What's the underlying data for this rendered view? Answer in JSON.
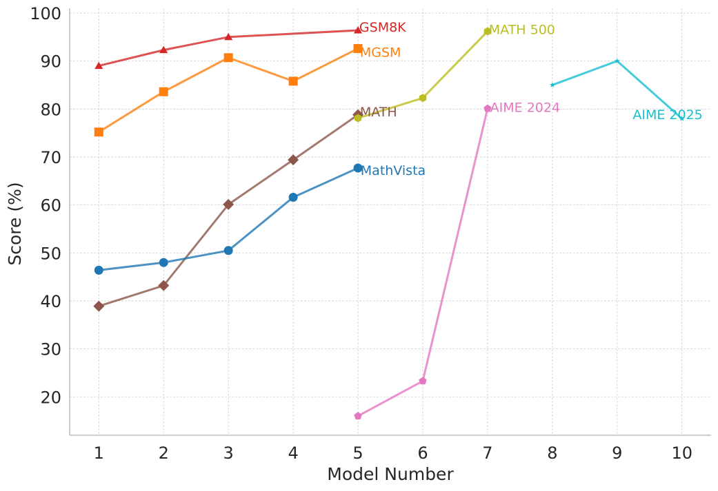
{
  "chart_data": {
    "type": "line",
    "title": "",
    "xlabel": "Model Number",
    "ylabel": "Score (%)",
    "xlim": [
      0.55,
      10.45
    ],
    "ylim": [
      12,
      101
    ],
    "xticks": [
      1,
      2,
      3,
      4,
      5,
      6,
      7,
      8,
      9,
      10
    ],
    "yticks": [
      20,
      30,
      40,
      50,
      60,
      70,
      80,
      90,
      100
    ],
    "grid": true,
    "series": [
      {
        "name": "GSM8K",
        "color": "#d62728",
        "marker": "triangle",
        "x": [
          1,
          2,
          3,
          5
        ],
        "y": [
          89.0,
          92.3,
          95.0,
          96.4
        ],
        "label_at": {
          "x": 5.02,
          "y": 97.1,
          "anchor": "start"
        }
      },
      {
        "name": "MGSM",
        "color": "#ff7f0e",
        "marker": "square",
        "x": [
          1,
          2,
          3,
          4,
          5
        ],
        "y": [
          75.2,
          83.6,
          90.7,
          85.8,
          92.6
        ],
        "label_at": {
          "x": 5.03,
          "y": 91.9,
          "anchor": "start"
        }
      },
      {
        "name": "MATH",
        "color": "#8c564b",
        "marker": "diamond",
        "x": [
          1,
          2,
          3,
          4,
          5
        ],
        "y": [
          38.9,
          43.2,
          60.1,
          69.4,
          78.8
        ],
        "label_at": {
          "x": 5.03,
          "y": 79.5,
          "anchor": "start"
        }
      },
      {
        "name": "MathVista",
        "color": "#1f77b4",
        "marker": "circle",
        "x": [
          1,
          2,
          3,
          4,
          5
        ],
        "y": [
          46.4,
          48.0,
          50.5,
          61.6,
          67.7
        ],
        "label_at": {
          "x": 5.04,
          "y": 67.3,
          "anchor": "start"
        }
      },
      {
        "name": "MATH 500",
        "color": "#bcbd22",
        "marker": "hexagon",
        "x": [
          5,
          6,
          7
        ],
        "y": [
          78.1,
          82.3,
          96.2
        ],
        "label_at": {
          "x": 7.02,
          "y": 96.6,
          "anchor": "start"
        }
      },
      {
        "name": "AIME 2024",
        "color": "#e377c2",
        "marker": "pentagon",
        "x": [
          5,
          6,
          7
        ],
        "y": [
          16.0,
          23.3,
          80.1
        ],
        "label_at": {
          "x": 7.04,
          "y": 80.4,
          "anchor": "start"
        }
      },
      {
        "name": "AIME 2025",
        "color": "#17becf",
        "marker": "star",
        "x": [
          8,
          9,
          10
        ],
        "y": [
          85.0,
          90.0,
          78.0
        ],
        "label_at": {
          "x": 10.32,
          "y": 78.9,
          "anchor": "end"
        }
      }
    ]
  }
}
